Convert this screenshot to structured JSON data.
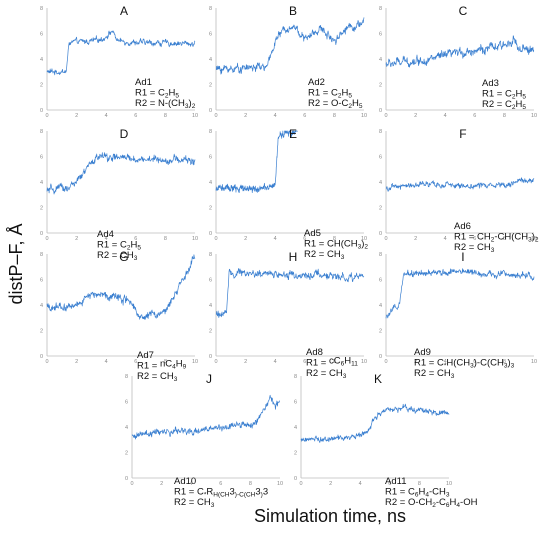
{
  "figure": {
    "ylabel": "distP–F, Å",
    "xlabel": "Simulation time, ns",
    "line_color": "#3a7fd0",
    "axis_color": "#bdbdbd"
  },
  "chart_data": [
    {
      "type": "line",
      "letter": "A",
      "xlim": [
        0,
        10
      ],
      "ylim": [
        0,
        8
      ],
      "xticks": [
        0,
        2,
        4,
        6,
        8,
        10
      ],
      "yticks": [
        0,
        2,
        4,
        6,
        8
      ],
      "annotation": [
        [
          "Ad1"
        ],
        [
          "R1 = C",
          "2",
          "H",
          "5"
        ],
        [
          "R2 = N-(CH",
          "3",
          ")",
          "2"
        ]
      ],
      "profile": [
        [
          0,
          3.0
        ],
        [
          1.3,
          3.0
        ],
        [
          1.5,
          5.3
        ],
        [
          3.0,
          5.4
        ],
        [
          3.8,
          5.6
        ],
        [
          4.4,
          6.2
        ],
        [
          4.8,
          5.4
        ],
        [
          6.0,
          5.3
        ],
        [
          10,
          5.2
        ]
      ],
      "noise": 0.25
    },
    {
      "type": "line",
      "letter": "B",
      "xlim": [
        0,
        10
      ],
      "ylim": [
        0,
        8
      ],
      "xticks": [
        0,
        2,
        4,
        6,
        8,
        10
      ],
      "yticks": [
        0,
        2,
        4,
        6,
        8
      ],
      "annotation": [
        [
          "Ad2"
        ],
        [
          "R1 = C",
          "2",
          "H",
          "5"
        ],
        [
          "R2 = O-C",
          "2",
          "H",
          "5"
        ]
      ],
      "profile": [
        [
          0,
          3.2
        ],
        [
          3.5,
          3.4
        ],
        [
          4.0,
          5.5
        ],
        [
          4.8,
          6.5
        ],
        [
          5.4,
          6.5
        ],
        [
          6.0,
          5.5
        ],
        [
          7.0,
          6.4
        ],
        [
          8.0,
          5.5
        ],
        [
          9.0,
          6.6
        ],
        [
          9.6,
          6.6
        ],
        [
          10,
          7.0
        ]
      ],
      "noise": 0.35
    },
    {
      "type": "line",
      "letter": "C",
      "xlim": [
        0,
        10
      ],
      "ylim": [
        0,
        8
      ],
      "xticks": [
        0,
        2,
        4,
        6,
        8,
        10
      ],
      "yticks": [
        0,
        2,
        4,
        6,
        8
      ],
      "annotation": [
        [
          "Ad3"
        ],
        [
          "R1 = C",
          "2",
          "H",
          "5"
        ],
        [
          "R2 = C",
          "2",
          "H",
          "5"
        ]
      ],
      "profile": [
        [
          0,
          3.6
        ],
        [
          3.0,
          4.0
        ],
        [
          5.5,
          4.6
        ],
        [
          8.0,
          5.0
        ],
        [
          8.6,
          5.7
        ],
        [
          9.0,
          4.6
        ],
        [
          10,
          4.8
        ]
      ],
      "noise": 0.4
    },
    {
      "type": "line",
      "letter": "D",
      "xlim": [
        0,
        10
      ],
      "ylim": [
        0,
        8
      ],
      "xticks": [
        0,
        2,
        4,
        6,
        8,
        10
      ],
      "yticks": [
        0,
        2,
        4,
        6,
        8
      ],
      "annotation": [
        [
          "Ad4"
        ],
        [
          "R1 = C",
          "2",
          "H",
          "5"
        ],
        [
          "R2 = CH",
          "3"
        ]
      ],
      "profile": [
        [
          0,
          3.3
        ],
        [
          1.5,
          3.6
        ],
        [
          2.2,
          4.2
        ],
        [
          3.0,
          5.5
        ],
        [
          3.4,
          6.0
        ],
        [
          6.0,
          5.8
        ],
        [
          10,
          5.7
        ]
      ],
      "noise": 0.35
    },
    {
      "type": "line",
      "letter": "E",
      "xlim": [
        0,
        10
      ],
      "ylim": [
        0,
        8
      ],
      "xticks": [
        0,
        2,
        4,
        6,
        8,
        10
      ],
      "yticks": [
        0,
        2,
        4,
        6,
        8
      ],
      "annotation": [
        [
          "Ad5"
        ],
        [
          "R1 = CH(CH",
          "3",
          ")",
          "2"
        ],
        [
          "R2 = CH",
          "3"
        ]
      ],
      "profile": [
        [
          0,
          3.5
        ],
        [
          3.5,
          3.5
        ],
        [
          4.0,
          3.7
        ],
        [
          4.2,
          7.5
        ],
        [
          4.8,
          8.0
        ],
        [
          5.2,
          7.8
        ],
        [
          5.5,
          8.0
        ]
      ],
      "noise": 0.3
    },
    {
      "type": "line",
      "letter": "F",
      "xlim": [
        0,
        10
      ],
      "ylim": [
        0,
        8
      ],
      "xticks": [
        0,
        2,
        4,
        6,
        8,
        10
      ],
      "yticks": [
        0,
        2,
        4,
        6,
        8
      ],
      "annotation": [
        [
          "Ad6"
        ],
        [
          "R1 = CH",
          "2",
          "-CH(CH",
          "3",
          ")",
          "2"
        ],
        [
          "R2 = CH",
          "3"
        ]
      ],
      "profile": [
        [
          0,
          3.5
        ],
        [
          2.0,
          3.8
        ],
        [
          6.0,
          3.7
        ],
        [
          8.5,
          3.9
        ],
        [
          10,
          4.2
        ]
      ],
      "noise": 0.25
    },
    {
      "type": "line",
      "letter": "G",
      "xlim": [
        0,
        10
      ],
      "ylim": [
        0,
        8
      ],
      "xticks": [
        0,
        2,
        4,
        6,
        8,
        10
      ],
      "yticks": [
        0,
        2,
        4,
        6,
        8
      ],
      "annotation": [
        [
          "Ad7"
        ],
        [
          "R1 = ",
          "",
          "nC",
          "4",
          "H",
          "9"
        ],
        [
          "R2 = CH",
          "3"
        ]
      ],
      "profile": [
        [
          0,
          3.8
        ],
        [
          2.0,
          3.9
        ],
        [
          2.8,
          4.8
        ],
        [
          4.5,
          4.8
        ],
        [
          5.8,
          4.2
        ],
        [
          6.2,
          3.2
        ],
        [
          7.8,
          3.3
        ],
        [
          8.5,
          4.5
        ],
        [
          9.5,
          6.5
        ],
        [
          10,
          7.8
        ]
      ],
      "noise": 0.35
    },
    {
      "type": "line",
      "letter": "H",
      "xlim": [
        0,
        10
      ],
      "ylim": [
        0,
        8
      ],
      "xticks": [
        0,
        2,
        4,
        6,
        8,
        10
      ],
      "yticks": [
        0,
        2,
        4,
        6,
        8
      ],
      "annotation": [
        [
          "Ad8"
        ],
        [
          "R1 = ",
          "",
          "cC",
          "6",
          "H",
          "11"
        ],
        [
          "R2 = CH",
          "3"
        ]
      ],
      "profile": [
        [
          0,
          3.3
        ],
        [
          0.7,
          3.3
        ],
        [
          0.9,
          6.5
        ],
        [
          5.0,
          6.4
        ],
        [
          10,
          6.2
        ]
      ],
      "noise": 0.35
    },
    {
      "type": "line",
      "letter": "I",
      "xlim": [
        0,
        10
      ],
      "ylim": [
        0,
        8
      ],
      "xticks": [
        0,
        2,
        4,
        6,
        8,
        10
      ],
      "yticks": [
        0,
        2,
        4,
        6,
        8
      ],
      "annotation": [
        [
          "Ad9"
        ],
        [
          "R1 = C",
          "*",
          "H(CH",
          "3",
          ")-C(CH",
          "3",
          ")",
          "3"
        ],
        [
          "R2 = CH",
          "3"
        ]
      ],
      "profile": [
        [
          0,
          3.0
        ],
        [
          0.5,
          3.8
        ],
        [
          0.9,
          3.8
        ],
        [
          1.2,
          6.4
        ],
        [
          5.0,
          6.6
        ],
        [
          10,
          6.3
        ]
      ],
      "noise": 0.3
    },
    {
      "type": "line",
      "letter": "J",
      "xlim": [
        0,
        10
      ],
      "ylim": [
        0,
        8
      ],
      "xticks": [
        0,
        2,
        4,
        6,
        8,
        10
      ],
      "yticks": [
        0,
        2,
        4,
        6,
        8
      ],
      "annotation": [
        [
          "Ad10"
        ],
        [
          "R1 = C",
          "*",
          "R",
          "H(CH",
          "3",
          ")-C(CH",
          "3",
          ")",
          "3"
        ],
        [
          "R2 = CH",
          "3"
        ]
      ],
      "profile": [
        [
          0,
          3.4
        ],
        [
          4.0,
          3.7
        ],
        [
          7.0,
          4.0
        ],
        [
          8.3,
          4.3
        ],
        [
          9.0,
          5.5
        ],
        [
          9.4,
          6.3
        ],
        [
          9.7,
          5.6
        ],
        [
          10,
          6.0
        ]
      ],
      "noise": 0.3
    },
    {
      "type": "line",
      "letter": "K",
      "xlim": [
        0,
        10
      ],
      "ylim": [
        0,
        8
      ],
      "xticks": [
        0,
        2,
        4,
        6,
        8,
        10
      ],
      "yticks": [
        0,
        2,
        4,
        6,
        8
      ],
      "annotation": [
        [
          "Ad11"
        ],
        [
          "R1 = C",
          "6",
          "H",
          "4",
          "-CH",
          "3"
        ],
        [
          "R2 = O-CH",
          "2",
          "-C",
          "6",
          "H",
          "4",
          "-OH"
        ]
      ],
      "profile": [
        [
          0,
          3.0
        ],
        [
          3.5,
          3.1
        ],
        [
          4.5,
          3.6
        ],
        [
          5.0,
          4.8
        ],
        [
          5.6,
          5.2
        ],
        [
          7.0,
          5.5
        ],
        [
          10,
          5.1
        ]
      ],
      "noise": 0.25
    }
  ]
}
